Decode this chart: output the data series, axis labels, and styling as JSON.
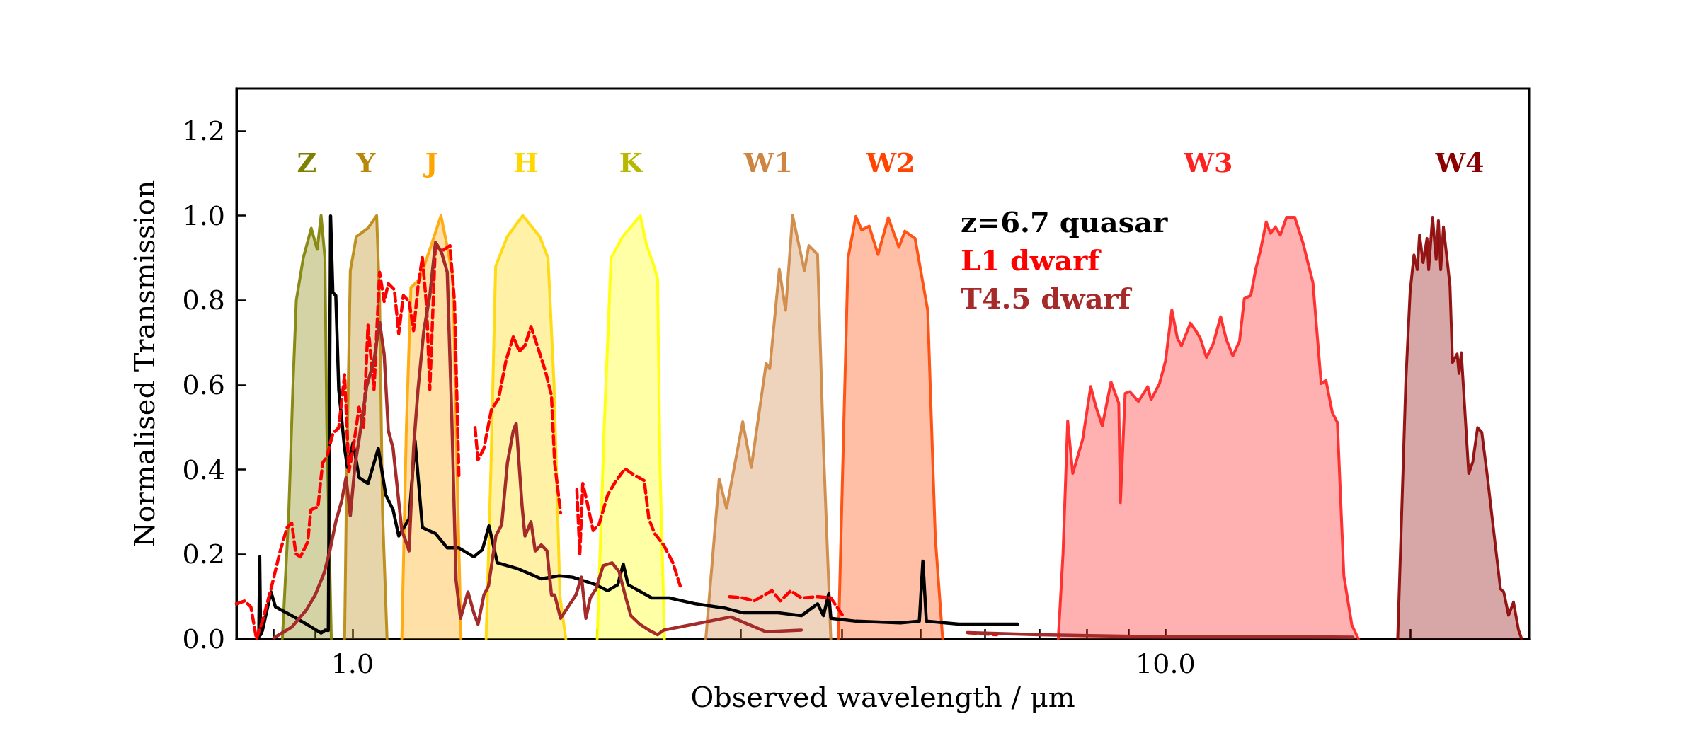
{
  "chart_data": {
    "type": "area",
    "xlabel": "Observed wavelength / μm",
    "ylabel": "Normalised Transmission",
    "log": "x",
    "xlim": [
      0.72,
      28
    ],
    "ylim": [
      0,
      1.3
    ],
    "xticks": [
      {
        "value": 0.8,
        "label": null
      },
      {
        "value": 0.9,
        "label": null
      },
      {
        "value": 1,
        "label": "1.0"
      },
      {
        "value": 2,
        "label": null
      },
      {
        "value": 3,
        "label": null
      },
      {
        "value": 4,
        "label": null
      },
      {
        "value": 5,
        "label": null
      },
      {
        "value": 6,
        "label": null
      },
      {
        "value": 7,
        "label": null
      },
      {
        "value": 8,
        "label": null
      },
      {
        "value": 9,
        "label": null
      },
      {
        "value": 10,
        "label": "10.0"
      },
      {
        "value": 20,
        "label": null
      }
    ],
    "yticks": [
      {
        "value": 0,
        "label": "0.0"
      },
      {
        "value": 0.2,
        "label": "0.2"
      },
      {
        "value": 0.4,
        "label": "0.4"
      },
      {
        "value": 0.6,
        "label": "0.6"
      },
      {
        "value": 0.8,
        "label": "0.8"
      },
      {
        "value": 1,
        "label": "1.0"
      },
      {
        "value": 1.2,
        "label": "1.2"
      }
    ],
    "grid": false,
    "legend": "top",
    "marker": "none",
    "series": [
      {
        "name": "Z",
        "color": "#808000",
        "x": [
          0.82,
          0.835,
          0.845,
          0.853,
          0.87,
          0.89,
          0.905,
          0.915,
          0.925,
          0.93,
          0.942
        ],
        "values": [
          0,
          0.3,
          0.6,
          0.8,
          0.9,
          0.97,
          0.92,
          1.0,
          0.9,
          0.5,
          0
        ]
      },
      {
        "name": "Y",
        "color": "#b8860b",
        "x": [
          0.978,
          0.984,
          0.994,
          1.011,
          1.045,
          1.071,
          1.08,
          1.089,
          1.103
        ],
        "values": [
          0,
          0.4,
          0.87,
          0.95,
          0.97,
          1.0,
          0.8,
          0.3,
          0
        ]
      },
      {
        "name": "J",
        "color": "#ffa500",
        "x": [
          1.15,
          1.165,
          1.18,
          1.21,
          1.25,
          1.285,
          1.31,
          1.33,
          1.345,
          1.36
        ],
        "values": [
          0,
          0.5,
          0.83,
          0.85,
          0.93,
          1.0,
          0.92,
          0.85,
          0.4,
          0
        ]
      },
      {
        "name": "H",
        "color": "#ffd700",
        "x": [
          1.46,
          1.48,
          1.5,
          1.55,
          1.62,
          1.7,
          1.74,
          1.77,
          1.8,
          1.83
        ],
        "values": [
          0,
          0.4,
          0.88,
          0.95,
          1.0,
          0.95,
          0.9,
          0.6,
          0.1,
          0
        ]
      },
      {
        "name": "K",
        "color": "#ffff00",
        "x": [
          2.0,
          2.04,
          2.08,
          2.15,
          2.26,
          2.3,
          2.35,
          2.373,
          2.39,
          2.42
        ],
        "values": [
          0,
          0.5,
          0.9,
          0.95,
          1.0,
          0.93,
          0.88,
          0.85,
          0.4,
          0
        ]
      },
      {
        "name": "W1",
        "color": "#cd853f",
        "x": [
          2.72,
          2.825,
          2.885,
          3.02,
          3.094,
          3.227,
          3.26,
          3.35,
          3.41,
          3.478,
          3.596,
          3.642,
          3.733,
          3.796,
          3.876
        ],
        "values": [
          0,
          0.378,
          0.308,
          0.513,
          0.405,
          0.651,
          0.638,
          0.873,
          0.776,
          1.0,
          0.87,
          0.929,
          0.908,
          0.45,
          0
        ]
      },
      {
        "name": "W2",
        "color": "#ff4500",
        "x": [
          3.96,
          4.02,
          4.07,
          4.16,
          4.23,
          4.32,
          4.43,
          4.56,
          4.7,
          4.78,
          4.92,
          5.1,
          5.21,
          5.32
        ],
        "values": [
          0,
          0.5,
          0.9,
          0.998,
          0.966,
          0.975,
          0.908,
          0.995,
          0.925,
          0.963,
          0.946,
          0.776,
          0.24,
          0
        ]
      },
      {
        "name": "W3",
        "color": "#ff2020",
        "x": [
          7.38,
          7.48,
          7.58,
          7.69,
          7.91,
          8.09,
          8.21,
          8.36,
          8.57,
          8.76,
          8.8,
          8.92,
          9.04,
          9.26,
          9.51,
          9.6,
          9.83,
          10.0,
          10.18,
          10.34,
          10.46,
          10.73,
          10.88,
          11.03,
          11.23,
          11.44,
          11.69,
          11.88,
          12.1,
          12.33,
          12.5,
          12.73,
          12.91,
          13.09,
          13.3,
          13.46,
          13.65,
          13.84,
          14.09,
          14.42,
          14.76,
          15.18,
          15.54,
          15.75,
          16.04,
          16.27,
          16.57,
          16.95,
          17.27
        ],
        "values": [
          0,
          0.2,
          0.515,
          0.391,
          0.472,
          0.596,
          0.549,
          0.503,
          0.607,
          0.557,
          0.322,
          0.58,
          0.584,
          0.561,
          0.596,
          0.565,
          0.603,
          0.657,
          0.777,
          0.711,
          0.692,
          0.746,
          0.73,
          0.711,
          0.665,
          0.696,
          0.761,
          0.707,
          0.669,
          0.703,
          0.804,
          0.811,
          0.873,
          0.919,
          0.985,
          0.958,
          0.973,
          0.954,
          0.996,
          0.996,
          0.935,
          0.842,
          0.603,
          0.611,
          0.534,
          0.511,
          0.149,
          0.033,
          0
        ]
      },
      {
        "name": "W4",
        "color": "#8b0000",
        "x": [
          19.3,
          19.75,
          19.99,
          20.21,
          20.4,
          20.53,
          20.74,
          20.97,
          21.07,
          21.3,
          21.52,
          21.66,
          21.8,
          21.97,
          22.38,
          22.54,
          22.84,
          22.96,
          23.11,
          23.6,
          23.87,
          24.2,
          24.49,
          24.88,
          25.35,
          25.82,
          26.06,
          26.42,
          26.79,
          27.17,
          27.42
        ],
        "values": [
          0,
          0.61,
          0.82,
          0.907,
          0.872,
          0.954,
          0.889,
          0.946,
          0.872,
          0.996,
          0.896,
          0.988,
          0.872,
          0.973,
          0.834,
          0.653,
          0.673,
          0.627,
          0.676,
          0.391,
          0.418,
          0.499,
          0.488,
          0.384,
          0.249,
          0.118,
          0.111,
          0.056,
          0.087,
          0.022,
          0
        ]
      },
      {
        "name": "z=6.7 quasar",
        "type": "line",
        "color": "#000000",
        "line_style": "solid",
        "x": [
          0.767,
          0.769,
          0.771,
          0.775,
          0.794,
          0.804,
          0.842,
          0.878,
          0.915,
          0.926,
          0.934,
          0.94,
          0.946,
          0.954,
          0.962,
          0.978,
          0.986,
          1.002,
          1.019,
          1.045,
          1.076,
          1.099,
          1.122,
          1.14,
          1.174,
          1.194,
          1.219,
          1.265,
          1.308,
          1.352,
          1.41,
          1.445,
          1.472,
          1.507,
          1.597,
          1.707,
          1.796,
          1.865,
          1.993,
          2.06,
          2.12,
          2.153,
          2.183,
          2.334,
          2.453,
          2.643,
          2.872,
          3.02,
          3.338,
          3.565,
          3.733,
          3.796,
          3.853,
          3.876,
          4.16,
          4.72,
          4.98,
          5.03,
          5.08,
          5.57,
          6.58
        ],
        "values": [
          0,
          0.194,
          0.01,
          0.02,
          0.111,
          0.076,
          0.055,
          0.035,
          0.014,
          0.021,
          0.02,
          0.999,
          0.818,
          0.811,
          0.589,
          0.45,
          0.405,
          0.464,
          0.381,
          0.367,
          0.45,
          0.34,
          0.305,
          0.243,
          0.284,
          0.468,
          0.263,
          0.249,
          0.215,
          0.215,
          0.194,
          0.211,
          0.267,
          0.18,
          0.166,
          0.142,
          0.149,
          0.146,
          0.128,
          0.114,
          0.128,
          0.177,
          0.128,
          0.097,
          0.097,
          0.083,
          0.073,
          0.062,
          0.062,
          0.055,
          0.083,
          0.055,
          0.107,
          0.049,
          0.042,
          0.038,
          0.042,
          0.184,
          0.042,
          0.035,
          0.035
        ]
      },
      {
        "name": "L1 dwarf",
        "type": "line",
        "color": "#ff0000",
        "line_style": "dashed",
        "x": [
          0.72,
          0.737,
          0.75,
          0.762,
          0.775,
          0.794,
          0.815,
          0.831,
          0.842,
          0.852,
          0.863,
          0.881,
          0.889,
          0.907,
          0.919,
          0.93,
          0.946,
          0.962,
          0.978,
          0.99,
          1.002,
          1.019,
          1.032,
          1.045,
          1.063,
          1.08,
          1.094,
          1.107,
          1.126,
          1.14,
          1.155,
          1.174,
          1.189,
          1.204,
          1.219,
          1.234,
          1.245,
          1.265,
          1.286,
          1.318,
          1.335,
          1.352,
          1.38,
          1.415,
          1.427,
          1.451,
          1.482,
          1.513,
          1.545,
          1.577,
          1.604,
          1.63,
          1.658,
          1.692,
          1.728,
          1.757,
          1.773,
          1.803,
          1.85,
          1.888,
          1.904,
          1.92,
          1.942,
          1.977,
          2.01,
          2.06,
          2.11,
          2.164,
          2.218,
          2.285,
          2.315,
          2.353,
          2.414,
          2.478,
          2.53,
          2.7,
          2.909,
          3.02,
          3.12,
          3.28,
          3.36,
          3.46,
          3.565,
          3.74,
          3.876,
          4.01,
          4.8,
          5.71,
          6.2
        ],
        "values": [
          0.083,
          0.09,
          0.076,
          0,
          0.042,
          0.118,
          0.208,
          0.263,
          0.274,
          0.201,
          0.194,
          0.229,
          0.305,
          0.312,
          0.416,
          0.43,
          0.485,
          0.499,
          0.624,
          0.395,
          0.45,
          0.547,
          0.499,
          0.741,
          0.589,
          0.866,
          0.797,
          0.839,
          0.825,
          0.721,
          0.811,
          0.797,
          0.728,
          0.832,
          0.901,
          0.783,
          0.589,
          0.936,
          0.915,
          0.929,
          0.797,
          0.381,
          null,
          0.499,
          0.423,
          0.45,
          0.541,
          0.568,
          0.658,
          0.714,
          0.679,
          0.693,
          0.738,
          0.686,
          0.631,
          0.575,
          0.416,
          0.298,
          null,
          0.353,
          0.201,
          0.367,
          0.326,
          0.256,
          0.27,
          0.34,
          0.374,
          0.402,
          0.388,
          0.374,
          0.284,
          0.249,
          0.222,
          0.18,
          0.125,
          null,
          0.1,
          0.097,
          0.09,
          0.114,
          0.09,
          0.114,
          0.097,
          0.1,
          0.097,
          0.055,
          null,
          0.015,
          0.01
        ]
      },
      {
        "name": "T4.5 dwarf",
        "type": "line",
        "color": "#a52a2a",
        "line_style": "solid",
        "x": [
          0.801,
          0.842,
          0.878,
          0.9,
          0.923,
          0.938,
          0.954,
          0.97,
          0.982,
          0.994,
          1.007,
          1.019,
          1.041,
          1.063,
          1.08,
          1.094,
          1.107,
          1.122,
          1.136,
          1.15,
          1.164,
          1.174,
          1.189,
          1.204,
          1.224,
          1.245,
          1.265,
          1.286,
          1.308,
          1.325,
          1.341,
          1.358,
          1.387,
          1.41,
          1.427,
          1.451,
          1.47,
          1.501,
          1.526,
          1.551,
          1.577,
          1.59,
          1.617,
          1.63,
          1.658,
          1.678,
          1.707,
          1.735,
          1.757,
          1.773,
          1.803,
          1.883,
          1.913,
          1.937,
          1.961,
          1.993,
          2.034,
          2.086,
          2.128,
          2.164,
          2.2,
          2.256,
          2.315,
          2.373,
          2.414,
          2.92,
          3.227,
          3.565,
          4.8,
          5.71,
          7.0,
          10.0,
          15.0,
          17.0
        ],
        "values": [
          0.003,
          0.028,
          0.069,
          0.104,
          0.156,
          0.208,
          0.277,
          0.326,
          0.381,
          0.291,
          0.409,
          0.471,
          0.596,
          0.658,
          0.748,
          0.672,
          0.492,
          0.45,
          0.353,
          0.256,
          0.229,
          0.208,
          0.45,
          0.589,
          0.728,
          0.811,
          0.936,
          0.915,
          0.866,
          0.52,
          0.139,
          0.049,
          0.111,
          0.062,
          0.035,
          0.104,
          0.125,
          0.243,
          0.27,
          0.416,
          0.492,
          0.509,
          0.312,
          0.243,
          0.277,
          0.208,
          0.222,
          0.208,
          0.104,
          0.104,
          0.049,
          0.104,
          0.146,
          0.049,
          0.097,
          0.118,
          0.173,
          0.18,
          0.159,
          0.104,
          0.055,
          0.035,
          0.021,
          0.01,
          0.021,
          0.052,
          0.017,
          0.021,
          null,
          0.015,
          0.01,
          0.005,
          0.005,
          0.004
        ]
      }
    ]
  }
}
